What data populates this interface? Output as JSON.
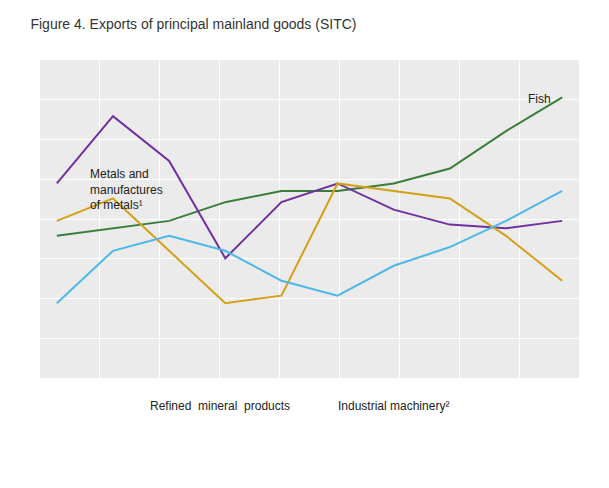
{
  "chart_data": {
    "type": "line",
    "title": "Figure 4. Exports of principal mainland goods (SITC)",
    "x": [
      0,
      1,
      2,
      3,
      4,
      5,
      6,
      7,
      8,
      9
    ],
    "series": [
      {
        "name": "Fish",
        "color": "#3a7d3a",
        "values": [
          0.58,
          0.6,
          0.62,
          0.67,
          0.7,
          0.7,
          0.72,
          0.76,
          0.86,
          0.95
        ]
      },
      {
        "name": "Metals and\nmanufactures\nof metals¹",
        "color": "#7030a0",
        "values": [
          0.72,
          0.9,
          0.78,
          0.52,
          0.67,
          0.72,
          0.65,
          0.61,
          0.6,
          0.62
        ]
      },
      {
        "name": "Refined  mineral  products",
        "color": "#d4a017",
        "values": [
          0.62,
          0.68,
          0.54,
          0.4,
          0.42,
          0.72,
          0.7,
          0.68,
          0.58,
          0.46
        ]
      },
      {
        "name": "Industrial machinery²",
        "color": "#4db8e8",
        "values": [
          0.4,
          0.54,
          0.58,
          0.54,
          0.46,
          0.42,
          0.5,
          0.55,
          0.62,
          0.7
        ]
      }
    ],
    "annotations": [
      {
        "text": "Fish",
        "x": 8.35,
        "y": 0.97
      },
      {
        "text": "Metals and\nmanufactures\nof metals¹",
        "x": 0.55,
        "y": 0.77
      },
      {
        "text": "Refined  mineral  products"
      },
      {
        "text": "Industrial machinery²"
      }
    ],
    "xlim": [
      -0.3,
      9.3
    ],
    "xticks": [
      -0.3,
      0.7666666666666666,
      1.8333333333333333,
      2.9,
      3.966666666666667,
      5.033333333333333,
      6.1,
      7.166666666666667,
      8.233333333333333,
      9.3
    ],
    "ylim": [
      0.2,
      1.05
    ],
    "yticks": [
      0.2,
      0.30625,
      0.4125,
      0.51875,
      0.625,
      0.73125,
      0.8375,
      0.94375,
      1.05
    ],
    "grid": true,
    "tick_labels": false
  }
}
